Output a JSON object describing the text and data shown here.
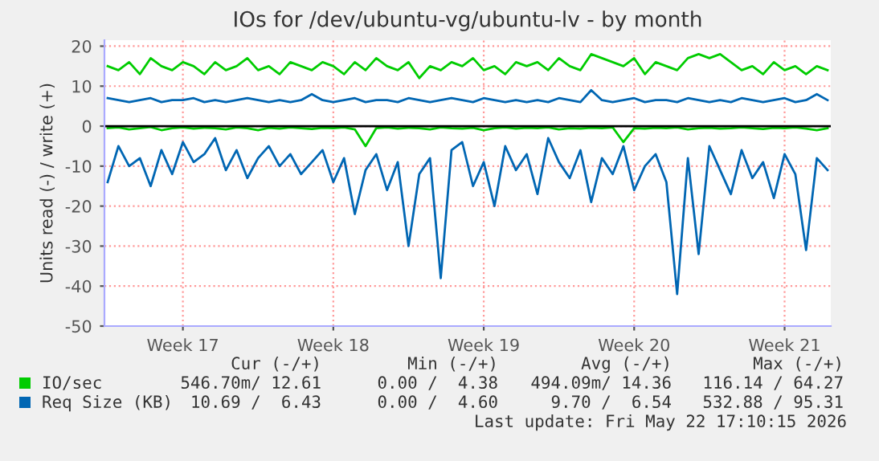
{
  "chart_data": {
    "type": "line",
    "title": "IOs for /dev/ubuntu-vg/ubuntu-lv - by month",
    "ylabel": "Units read (-) / write (+)",
    "categories": [
      null,
      null,
      null,
      null,
      null,
      null,
      null,
      "Week 17",
      null,
      null,
      null,
      null,
      null,
      null,
      null,
      null,
      null,
      null,
      null,
      null,
      null,
      "Week 18",
      null,
      null,
      null,
      null,
      null,
      null,
      null,
      null,
      null,
      null,
      null,
      null,
      null,
      "Week 19",
      null,
      null,
      null,
      null,
      null,
      null,
      null,
      null,
      null,
      null,
      null,
      null,
      null,
      "Week 20",
      null,
      null,
      null,
      null,
      null,
      null,
      null,
      null,
      null,
      null,
      null,
      null,
      null,
      "Week 21",
      null,
      null,
      null,
      null
    ],
    "series": [
      {
        "name": "IO/sec",
        "color": "#00cc00",
        "values": [
          15,
          14,
          16,
          13,
          17,
          15,
          14,
          16,
          15,
          13,
          16,
          14,
          15,
          17,
          14,
          15,
          13,
          16,
          15,
          14,
          16,
          15,
          13,
          16,
          14,
          17,
          15,
          14,
          16,
          12,
          15,
          14,
          16,
          15,
          17,
          14,
          15,
          13,
          16,
          15,
          16,
          14,
          17,
          15,
          14,
          18,
          17,
          16,
          15,
          17,
          13,
          16,
          15,
          14,
          17,
          18,
          17,
          18,
          16,
          14,
          15,
          13,
          16,
          14,
          15,
          13,
          15,
          14
        ]
      },
      {
        "color": "#00cc00",
        "values": [
          -0.5,
          -0.3,
          -0.8,
          -0.5,
          -0.2,
          -1,
          -0.5,
          -0.3,
          -0.6,
          -0.4,
          -0.5,
          -0.8,
          -0.3,
          -0.5,
          -1,
          -0.4,
          -0.6,
          -0.3,
          -0.5,
          -0.7,
          -0.4,
          -0.5,
          -0.3,
          -0.8,
          -5,
          -0.5,
          -0.3,
          -0.6,
          -0.4,
          -0.5,
          -0.8,
          -0.3,
          -0.5,
          -0.6,
          -0.4,
          -1,
          -0.5,
          -0.3,
          -0.6,
          -0.4,
          -0.5,
          -0.3,
          -0.8,
          -0.5,
          -0.6,
          -0.4,
          -0.5,
          -0.3,
          -4,
          -0.5,
          -0.6,
          -0.4,
          -0.5,
          -0.3,
          -0.8,
          -0.5,
          -0.4,
          -0.6,
          -0.5,
          -0.3,
          -0.5,
          -0.7,
          -0.4,
          -0.5,
          -0.3,
          -0.6,
          -1,
          -0.5
        ]
      },
      {
        "name": "Req Size (KB)",
        "color": "#0066b3",
        "values": [
          7,
          6.5,
          6,
          6.5,
          7,
          6,
          6.5,
          6.5,
          7,
          6,
          6.5,
          6,
          6.5,
          7,
          6.5,
          6,
          6.5,
          6,
          6.5,
          8,
          6.5,
          6,
          6.5,
          7,
          6,
          6.5,
          6.5,
          6,
          7,
          6.5,
          6,
          6.5,
          7,
          6.5,
          6,
          7,
          6.5,
          6,
          6.5,
          6,
          6.5,
          6,
          7,
          6.5,
          6,
          9,
          6.5,
          6,
          6.5,
          7,
          6,
          6.5,
          6.5,
          6,
          7,
          6.5,
          6,
          6.5,
          6,
          7,
          6.5,
          6,
          6.5,
          7,
          6,
          6.5,
          8,
          6.5
        ]
      },
      {
        "color": "#0066b3",
        "values": [
          -14,
          -5,
          -10,
          -8,
          -15,
          -6,
          -12,
          -4,
          -9,
          -7,
          -3,
          -11,
          -6,
          -13,
          -8,
          -5,
          -10,
          -7,
          -12,
          -9,
          -6,
          -14,
          -8,
          -22,
          -11,
          -7,
          -16,
          -9,
          -30,
          -12,
          -8,
          -38,
          -6,
          -4,
          -15,
          -9,
          -20,
          -5,
          -11,
          -7,
          -17,
          -3,
          -9,
          -13,
          -6,
          -19,
          -8,
          -12,
          -5,
          -16,
          -10,
          -7,
          -14,
          -42,
          -8,
          -32,
          -5,
          -11,
          -17,
          -6,
          -13,
          -9,
          -18,
          -7,
          -12,
          -31,
          -8,
          -11
        ]
      }
    ],
    "ylim": [
      -50,
      21.5
    ],
    "yticks": [
      -50,
      -40,
      -30,
      -20,
      -10,
      0,
      10,
      20
    ],
    "ref_lines": [
      {
        "axis": "y",
        "value": 0,
        "color": "#000000"
      }
    ],
    "grid": true,
    "legend": "bottom left",
    "annotations": [
      "Cur (-/+)",
      "Min (-/+)",
      "Avg (-/+)",
      "Max (-/+)",
      "546.70m/ 12.61",
      "0.00 /  4.38",
      "494.09m/ 14.36",
      "116.14 / 64.27",
      "10.69 /  6.43",
      "0.00 /  4.60",
      "9.70 /  6.54",
      "532.88 / 95.31",
      "Last update: Fri May 22 17:10:15 2026"
    ]
  }
}
